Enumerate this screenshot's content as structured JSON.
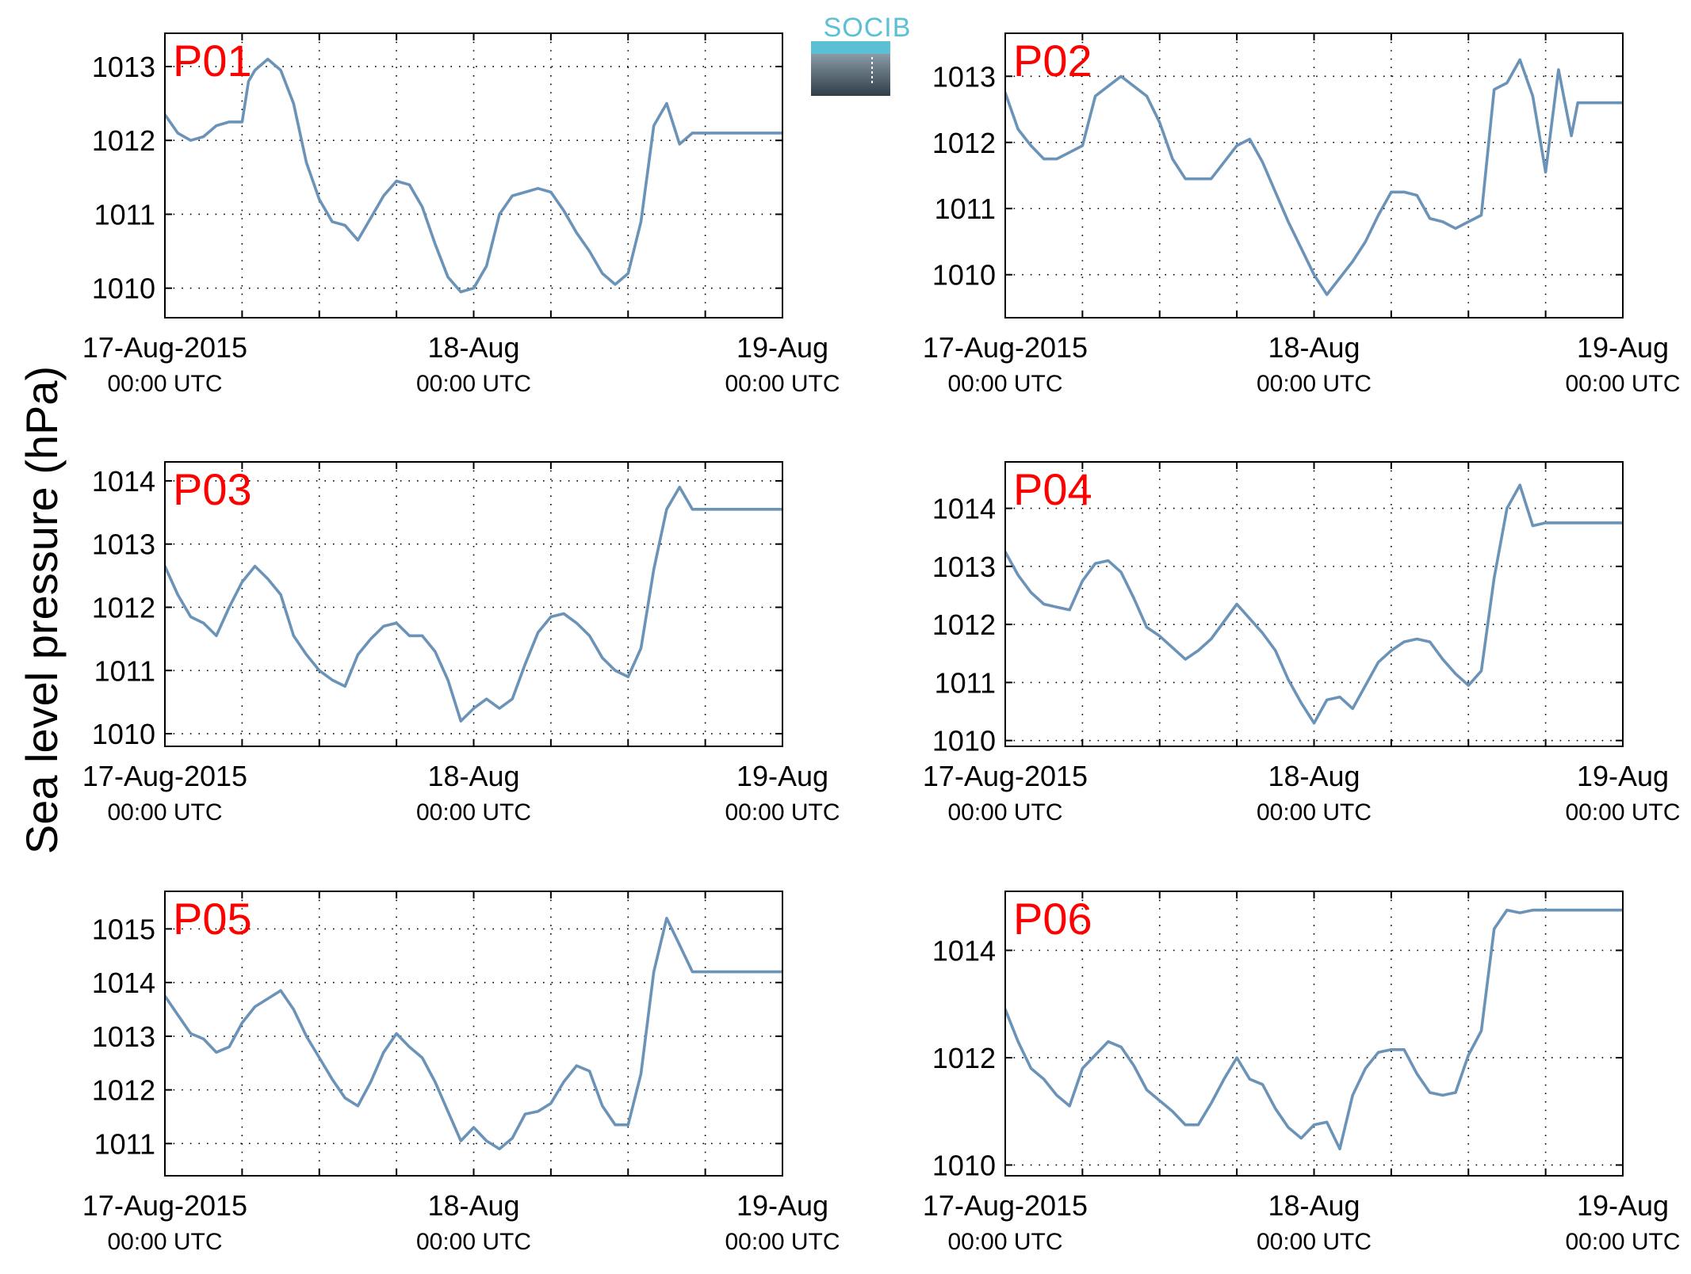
{
  "figure": {
    "ylabel": "Sea level pressure (hPa)",
    "logo_text": "SOCIB",
    "colors": {
      "line": "#6b93b8",
      "panel_label": "#ff0000",
      "axes": "#000000",
      "grid": "#000000",
      "logo_top": "#5bc0d3",
      "logo_bottom_dark": "#2f3e48",
      "logo_bottom_light": "#8a9aa6"
    }
  },
  "chart_data": [
    {
      "type": "line",
      "label": "P01",
      "x_unit": "hours since 17-Aug-2015 00:00 UTC",
      "xlim": [
        0,
        48
      ],
      "xticks": [
        {
          "value": 0,
          "label": "17-Aug-2015",
          "sublabel": "00:00 UTC"
        },
        {
          "value": 24,
          "label": "18-Aug",
          "sublabel": "00:00 UTC"
        },
        {
          "value": 48,
          "label": "19-Aug",
          "sublabel": "00:00 UTC"
        }
      ],
      "x_minor_grid": [
        6,
        12,
        18,
        30,
        36,
        42
      ],
      "ylim": [
        1009.6,
        1013.45
      ],
      "yticks": [
        1010,
        1011,
        1012,
        1013
      ],
      "grid": true,
      "series": [
        {
          "x": [
            0,
            1,
            2,
            3,
            4,
            5,
            6,
            6.5,
            7,
            8,
            9,
            10,
            11,
            12,
            13,
            14,
            15,
            16,
            17,
            18,
            19,
            20,
            21,
            22,
            23,
            24,
            25,
            26,
            27,
            28,
            29,
            30,
            31,
            32,
            33,
            34,
            35,
            36,
            37,
            38,
            39,
            40,
            41,
            42,
            43,
            44,
            45,
            46,
            47,
            48
          ],
          "y": [
            1012.35,
            1012.1,
            1012.0,
            1012.05,
            1012.2,
            1012.25,
            1012.25,
            1012.8,
            1012.95,
            1013.1,
            1012.95,
            1012.5,
            1011.7,
            1011.2,
            1010.9,
            1010.85,
            1010.65,
            1010.95,
            1011.25,
            1011.45,
            1011.4,
            1011.1,
            1010.6,
            1010.15,
            1009.95,
            1010.0,
            1010.3,
            1011.0,
            1011.25,
            1011.3,
            1011.35,
            1011.3,
            1011.05,
            1010.75,
            1010.5,
            1010.2,
            1010.05,
            1010.2,
            1010.9,
            1012.2,
            1012.5,
            1011.95,
            1012.1,
            1012.1,
            1012.1,
            1012.1,
            1012.1,
            1012.1,
            1012.1,
            1012.1
          ]
        }
      ]
    },
    {
      "type": "line",
      "label": "P02",
      "x_unit": "hours since 17-Aug-2015 00:00 UTC",
      "xlim": [
        0,
        48
      ],
      "xticks": [
        {
          "value": 0,
          "label": "17-Aug-2015",
          "sublabel": "00:00 UTC"
        },
        {
          "value": 24,
          "label": "18-Aug",
          "sublabel": "00:00 UTC"
        },
        {
          "value": 48,
          "label": "19-Aug",
          "sublabel": "00:00 UTC"
        }
      ],
      "x_minor_grid": [
        6,
        12,
        18,
        30,
        36,
        42
      ],
      "ylim": [
        1009.35,
        1013.65
      ],
      "yticks": [
        1010,
        1011,
        1012,
        1013
      ],
      "grid": true,
      "series": [
        {
          "x": [
            0,
            1,
            2,
            3,
            4,
            5,
            6,
            7,
            8,
            9,
            10,
            11,
            12,
            13,
            14,
            15,
            16,
            17,
            18,
            19,
            20,
            21,
            22,
            23,
            24,
            25,
            26,
            27,
            28,
            29,
            30,
            31,
            32,
            33,
            34,
            35,
            36,
            37,
            38,
            39,
            40,
            41,
            42,
            43,
            44,
            44.5,
            45,
            45.5,
            46,
            46.5,
            47,
            47.5,
            48
          ],
          "y": [
            1012.75,
            1012.2,
            1011.95,
            1011.75,
            1011.75,
            1011.85,
            1011.95,
            1012.7,
            1012.85,
            1013.0,
            1012.85,
            1012.7,
            1012.3,
            1011.75,
            1011.45,
            1011.45,
            1011.45,
            1011.7,
            1011.95,
            1012.05,
            1011.7,
            1011.25,
            1010.8,
            1010.4,
            1010.0,
            1009.7,
            1009.95,
            1010.2,
            1010.5,
            1010.9,
            1011.25,
            1011.25,
            1011.2,
            1010.85,
            1010.8,
            1010.7,
            1010.8,
            1010.9,
            1012.8,
            1012.9,
            1013.25,
            1012.7,
            1011.55,
            1013.1,
            1012.1,
            1012.6,
            1012.6,
            1012.6,
            1012.6,
            1012.6,
            1012.6,
            1012.6,
            1012.6
          ]
        }
      ]
    },
    {
      "type": "line",
      "label": "P03",
      "x_unit": "hours since 17-Aug-2015 00:00 UTC",
      "xlim": [
        0,
        48
      ],
      "xticks": [
        {
          "value": 0,
          "label": "17-Aug-2015",
          "sublabel": "00:00 UTC"
        },
        {
          "value": 24,
          "label": "18-Aug",
          "sublabel": "00:00 UTC"
        },
        {
          "value": 48,
          "label": "19-Aug",
          "sublabel": "00:00 UTC"
        }
      ],
      "x_minor_grid": [
        6,
        12,
        18,
        30,
        36,
        42
      ],
      "ylim": [
        1009.8,
        1014.3
      ],
      "yticks": [
        1010,
        1011,
        1012,
        1013,
        1014
      ],
      "grid": true,
      "series": [
        {
          "x": [
            0,
            1,
            2,
            3,
            4,
            5,
            6,
            7,
            8,
            9,
            10,
            11,
            12,
            13,
            14,
            15,
            16,
            17,
            18,
            19,
            20,
            21,
            22,
            23,
            24,
            25,
            26,
            27,
            28,
            29,
            30,
            31,
            32,
            33,
            34,
            35,
            36,
            37,
            38,
            39,
            40,
            41,
            42,
            43,
            44,
            45,
            46,
            47,
            48
          ],
          "y": [
            1012.65,
            1012.2,
            1011.85,
            1011.75,
            1011.55,
            1012.0,
            1012.4,
            1012.65,
            1012.45,
            1012.2,
            1011.55,
            1011.25,
            1011.0,
            1010.85,
            1010.75,
            1011.25,
            1011.5,
            1011.7,
            1011.75,
            1011.55,
            1011.55,
            1011.3,
            1010.85,
            1010.2,
            1010.4,
            1010.55,
            1010.4,
            1010.55,
            1011.1,
            1011.6,
            1011.85,
            1011.9,
            1011.75,
            1011.55,
            1011.2,
            1011.0,
            1010.9,
            1011.35,
            1012.6,
            1013.55,
            1013.9,
            1013.55,
            1013.55,
            1013.55,
            1013.55,
            1013.55,
            1013.55,
            1013.55,
            1013.55
          ]
        }
      ]
    },
    {
      "type": "line",
      "label": "P04",
      "x_unit": "hours since 17-Aug-2015 00:00 UTC",
      "xlim": [
        0,
        48
      ],
      "xticks": [
        {
          "value": 0,
          "label": "17-Aug-2015",
          "sublabel": "00:00 UTC"
        },
        {
          "value": 24,
          "label": "18-Aug",
          "sublabel": "00:00 UTC"
        },
        {
          "value": 48,
          "label": "19-Aug",
          "sublabel": "00:00 UTC"
        }
      ],
      "x_minor_grid": [
        6,
        12,
        18,
        30,
        36,
        42
      ],
      "ylim": [
        1009.9,
        1014.8
      ],
      "yticks": [
        1010,
        1011,
        1012,
        1013,
        1014
      ],
      "grid": true,
      "series": [
        {
          "x": [
            0,
            1,
            2,
            3,
            4,
            5,
            6,
            7,
            8,
            9,
            10,
            11,
            12,
            13,
            14,
            15,
            16,
            17,
            18,
            19,
            20,
            21,
            22,
            23,
            24,
            25,
            26,
            27,
            28,
            29,
            30,
            31,
            32,
            33,
            34,
            35,
            36,
            37,
            38,
            39,
            40,
            41,
            42,
            43,
            44,
            45,
            46,
            47,
            48
          ],
          "y": [
            1013.25,
            1012.85,
            1012.55,
            1012.35,
            1012.3,
            1012.25,
            1012.75,
            1013.05,
            1013.1,
            1012.9,
            1012.45,
            1011.95,
            1011.8,
            1011.6,
            1011.4,
            1011.55,
            1011.75,
            1012.05,
            1012.35,
            1012.1,
            1011.85,
            1011.55,
            1011.05,
            1010.65,
            1010.3,
            1010.7,
            1010.75,
            1010.55,
            1010.95,
            1011.35,
            1011.55,
            1011.7,
            1011.75,
            1011.7,
            1011.4,
            1011.15,
            1010.95,
            1011.2,
            1012.8,
            1014.0,
            1014.4,
            1013.7,
            1013.75,
            1013.75,
            1013.75,
            1013.75,
            1013.75,
            1013.75,
            1013.75
          ]
        }
      ]
    },
    {
      "type": "line",
      "label": "P05",
      "x_unit": "hours since 17-Aug-2015 00:00 UTC",
      "xlim": [
        0,
        48
      ],
      "xticks": [
        {
          "value": 0,
          "label": "17-Aug-2015",
          "sublabel": "00:00 UTC"
        },
        {
          "value": 24,
          "label": "18-Aug",
          "sublabel": "00:00 UTC"
        },
        {
          "value": 48,
          "label": "19-Aug",
          "sublabel": "00:00 UTC"
        }
      ],
      "x_minor_grid": [
        6,
        12,
        18,
        30,
        36,
        42
      ],
      "ylim": [
        1010.4,
        1015.7
      ],
      "yticks": [
        1011,
        1012,
        1013,
        1014,
        1015
      ],
      "grid": true,
      "series": [
        {
          "x": [
            0,
            1,
            2,
            3,
            4,
            5,
            6,
            7,
            8,
            9,
            10,
            11,
            12,
            13,
            14,
            15,
            16,
            17,
            18,
            19,
            20,
            21,
            22,
            23,
            24,
            25,
            26,
            27,
            28,
            29,
            30,
            31,
            32,
            33,
            34,
            35,
            36,
            37,
            38,
            39,
            40,
            41,
            42,
            43,
            44,
            45,
            46,
            47,
            48
          ],
          "y": [
            1013.75,
            1013.4,
            1013.05,
            1012.95,
            1012.7,
            1012.8,
            1013.25,
            1013.55,
            1013.7,
            1013.85,
            1013.5,
            1013.0,
            1012.6,
            1012.2,
            1011.85,
            1011.7,
            1012.15,
            1012.7,
            1013.05,
            1012.8,
            1012.6,
            1012.15,
            1011.6,
            1011.05,
            1011.3,
            1011.05,
            1010.9,
            1011.1,
            1011.55,
            1011.6,
            1011.75,
            1012.15,
            1012.45,
            1012.35,
            1011.7,
            1011.35,
            1011.35,
            1012.3,
            1014.2,
            1015.2,
            1014.7,
            1014.2,
            1014.2,
            1014.2,
            1014.2,
            1014.2,
            1014.2,
            1014.2,
            1014.2
          ]
        }
      ]
    },
    {
      "type": "line",
      "label": "P06",
      "x_unit": "hours since 17-Aug-2015 00:00 UTC",
      "xlim": [
        0,
        48
      ],
      "xticks": [
        {
          "value": 0,
          "label": "17-Aug-2015",
          "sublabel": "00:00 UTC"
        },
        {
          "value": 24,
          "label": "18-Aug",
          "sublabel": "00:00 UTC"
        },
        {
          "value": 48,
          "label": "19-Aug",
          "sublabel": "00:00 UTC"
        }
      ],
      "x_minor_grid": [
        6,
        12,
        18,
        30,
        36,
        42
      ],
      "ylim": [
        1009.8,
        1015.1
      ],
      "yticks": [
        1010,
        1012,
        1014
      ],
      "grid": true,
      "series": [
        {
          "x": [
            0,
            1,
            2,
            3,
            4,
            5,
            6,
            7,
            8,
            9,
            10,
            11,
            12,
            13,
            14,
            15,
            16,
            17,
            18,
            19,
            20,
            21,
            22,
            23,
            24,
            25,
            26,
            27,
            28,
            29,
            30,
            31,
            32,
            33,
            34,
            35,
            36,
            37,
            38,
            39,
            40,
            41,
            42,
            43,
            44,
            45,
            46,
            47,
            48
          ],
          "y": [
            1012.9,
            1012.3,
            1011.8,
            1011.6,
            1011.3,
            1011.1,
            1011.8,
            1012.05,
            1012.3,
            1012.2,
            1011.85,
            1011.4,
            1011.2,
            1011.0,
            1010.75,
            1010.75,
            1011.15,
            1011.6,
            1012.0,
            1011.6,
            1011.5,
            1011.05,
            1010.7,
            1010.5,
            1010.75,
            1010.8,
            1010.3,
            1011.3,
            1011.8,
            1012.1,
            1012.15,
            1012.15,
            1011.7,
            1011.35,
            1011.3,
            1011.35,
            1012.05,
            1012.5,
            1014.4,
            1014.75,
            1014.7,
            1014.75,
            1014.75,
            1014.75,
            1014.75,
            1014.75,
            1014.75,
            1014.75,
            1014.75
          ]
        }
      ]
    }
  ]
}
